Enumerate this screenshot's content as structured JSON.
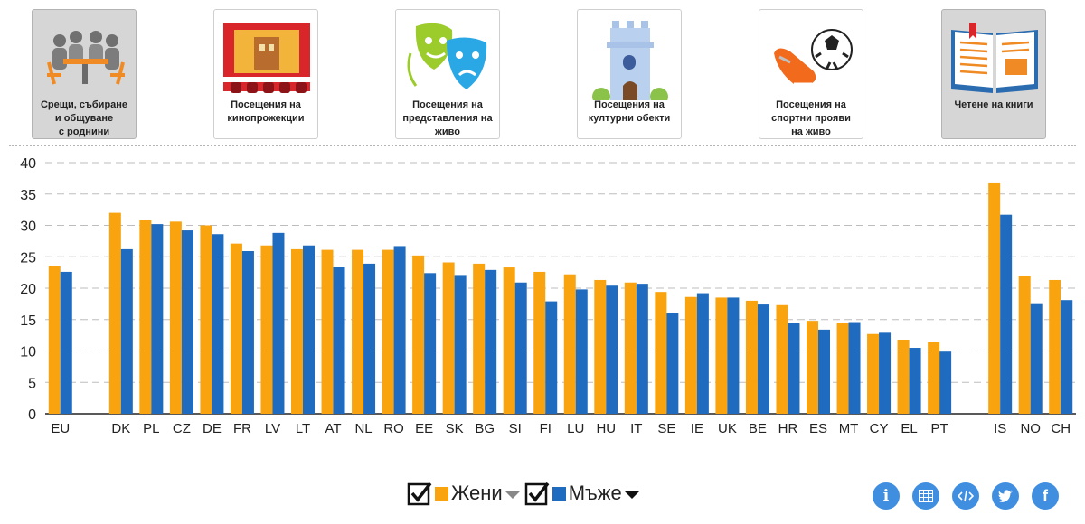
{
  "tabs": [
    {
      "label": "Срещи, събиране\nи общуване\nс роднини",
      "active": true,
      "icon": "people-meeting-icon"
    },
    {
      "label": "Посещения на\nкинопрожекции",
      "active": false,
      "icon": "cinema-icon"
    },
    {
      "label": "Посещения на\nпредставления на\nживо",
      "active": false,
      "icon": "theatre-masks-icon"
    },
    {
      "label": "Посещения на\nкултурни обекти",
      "active": false,
      "icon": "tower-icon"
    },
    {
      "label": "Посещения на\nспортни прояви\nна живо",
      "active": false,
      "icon": "football-icon"
    },
    {
      "label": "Четене на книги",
      "active": true,
      "icon": "open-book-icon"
    }
  ],
  "legend": {
    "women": {
      "label": "Жени",
      "color": "#f9a30e",
      "checked": true
    },
    "men": {
      "label": "Мъже",
      "color": "#1f6bbf",
      "checked": true
    }
  },
  "chart_data": {
    "type": "bar",
    "title": "",
    "xlabel": "",
    "ylabel": "",
    "ylim": [
      0,
      40
    ],
    "yticks": [
      0,
      5,
      10,
      15,
      20,
      25,
      30,
      35,
      40
    ],
    "grid": "horizontal dashed",
    "categories": [
      "EU",
      "",
      "DK",
      "PL",
      "CZ",
      "DE",
      "FR",
      "LV",
      "LT",
      "AT",
      "NL",
      "RO",
      "EE",
      "SK",
      "BG",
      "SI",
      "FI",
      "LU",
      "HU",
      "IT",
      "SE",
      "IE",
      "UK",
      "BE",
      "HR",
      "ES",
      "MT",
      "CY",
      "EL",
      "PT",
      "",
      "IS",
      "NO",
      "CH"
    ],
    "series": [
      {
        "name": "Жени",
        "color": "#f9a30e",
        "values": [
          23.6,
          null,
          32.0,
          30.8,
          30.6,
          30.0,
          27.1,
          26.8,
          26.2,
          26.1,
          26.1,
          26.1,
          25.2,
          24.1,
          23.9,
          23.3,
          22.6,
          22.2,
          21.3,
          20.9,
          19.4,
          18.6,
          18.5,
          18.0,
          17.3,
          14.8,
          14.5,
          12.7,
          11.8,
          11.4,
          null,
          36.7,
          21.9,
          21.3
        ]
      },
      {
        "name": "Мъже",
        "color": "#1f6bbf",
        "values": [
          22.6,
          null,
          26.2,
          30.2,
          29.2,
          28.6,
          25.9,
          28.8,
          26.8,
          23.4,
          23.9,
          26.7,
          22.4,
          22.1,
          22.9,
          20.9,
          17.9,
          19.8,
          20.4,
          20.7,
          16.0,
          19.2,
          18.5,
          17.4,
          14.4,
          13.4,
          14.6,
          12.9,
          10.5,
          9.9,
          null,
          31.7,
          17.6,
          18.1
        ]
      }
    ]
  },
  "toolbar": [
    {
      "icon": "info-icon",
      "glyph": "i"
    },
    {
      "icon": "table-icon",
      "glyph": ""
    },
    {
      "icon": "embed-code-icon",
      "glyph": "</>"
    },
    {
      "icon": "twitter-icon",
      "glyph": ""
    },
    {
      "icon": "facebook-icon",
      "glyph": "f"
    }
  ]
}
